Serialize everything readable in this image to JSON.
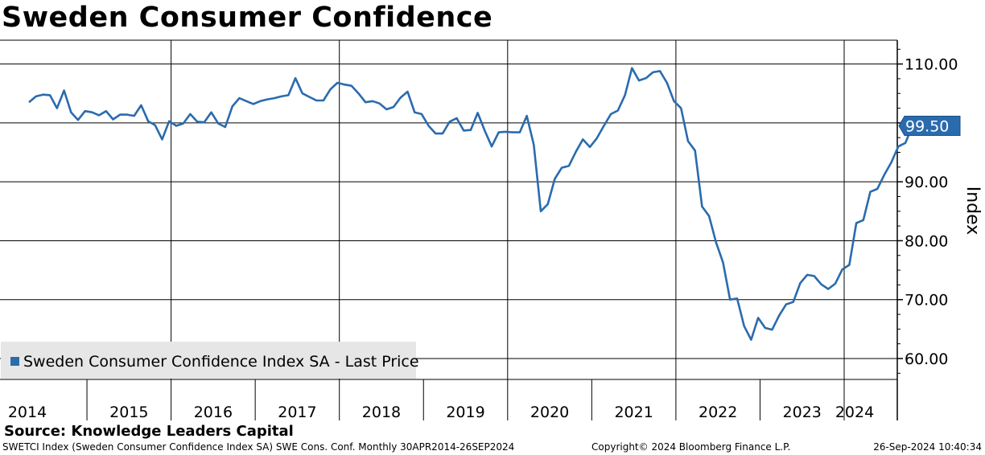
{
  "header": {
    "title": "Sweden Consumer Confidence"
  },
  "chart_data": {
    "type": "line",
    "title": "Sweden Consumer Confidence",
    "ylabel": "Index",
    "xlabel": "",
    "ylim": [
      56,
      115
    ],
    "yticks": [
      60,
      70,
      80,
      90,
      100,
      110
    ],
    "ytick_labels": [
      "60.00",
      "70.00",
      "80.00",
      "90.00",
      "",
      "110.00"
    ],
    "x_start": "2014-04",
    "x_end": "2024-09",
    "year_labels": [
      "2014",
      "2015",
      "2016",
      "2017",
      "2018",
      "2019",
      "2020",
      "2021",
      "2022",
      "2023",
      "2024"
    ],
    "major_year_lines": [
      2016,
      2018,
      2020,
      2022,
      2024
    ],
    "grid": true,
    "legend": {
      "position": "bottom-left",
      "entries": [
        "Sweden Consumer Confidence Index SA - Last Price"
      ]
    },
    "last_price_label": "99.50",
    "series": [
      {
        "name": "Sweden Consumer Confidence Index SA - Last Price",
        "color": "#2a6bad",
        "values": [
          103.5,
          104.5,
          104.8,
          104.7,
          102.5,
          105.5,
          101.8,
          100.5,
          102,
          101.8,
          101.3,
          102,
          100.6,
          101.4,
          101.4,
          101.2,
          103,
          100.3,
          99.6,
          97.2,
          100.3,
          99.5,
          99.9,
          101.5,
          100.2,
          100.1,
          101.8,
          99.9,
          99.3,
          102.8,
          104.2,
          103.7,
          103.2,
          103.7,
          104,
          104.2,
          104.5,
          104.7,
          107.6,
          105,
          104.4,
          103.8,
          103.8,
          105.7,
          106.8,
          106.5,
          106.3,
          105,
          103.5,
          103.7,
          103.3,
          102.3,
          102.7,
          104.3,
          105.3,
          101.8,
          101.5,
          99.5,
          98.2,
          98.2,
          100.2,
          100.8,
          98.7,
          98.8,
          101.7,
          98.7,
          96,
          98.4,
          98.5,
          98.4,
          98.4,
          101.2,
          96.3,
          85,
          86.2,
          90.5,
          92.4,
          92.7,
          95.1,
          97.2,
          95.9,
          97.4,
          99.5,
          101.5,
          102.1,
          104.7,
          109.3,
          107.2,
          107.6,
          108.6,
          108.8,
          106.8,
          103.7,
          102.5,
          96.9,
          95.3,
          85.8,
          84.2,
          79.7,
          76.3,
          70,
          70.2,
          65.5,
          63.2,
          66.9,
          65.2,
          64.9,
          67.3,
          69.2,
          69.6,
          72.8,
          74.2,
          74,
          72.6,
          71.8,
          72.7,
          75.1,
          75.9,
          83,
          83.5,
          88.3,
          88.8,
          91.2,
          93.3,
          96,
          96.6,
          99.5
        ]
      }
    ]
  },
  "footer": {
    "source": "Source: Knowledge Leaders Capital",
    "ticker_info": "SWETCI Index (Sweden Consumer Confidence Index SA) SWE Cons. Conf.  Monthly 30APR2014-26SEP2024",
    "copyright": "Copyright© 2024 Bloomberg Finance L.P.",
    "timestamp": "26-Sep-2024 10:40:34"
  }
}
